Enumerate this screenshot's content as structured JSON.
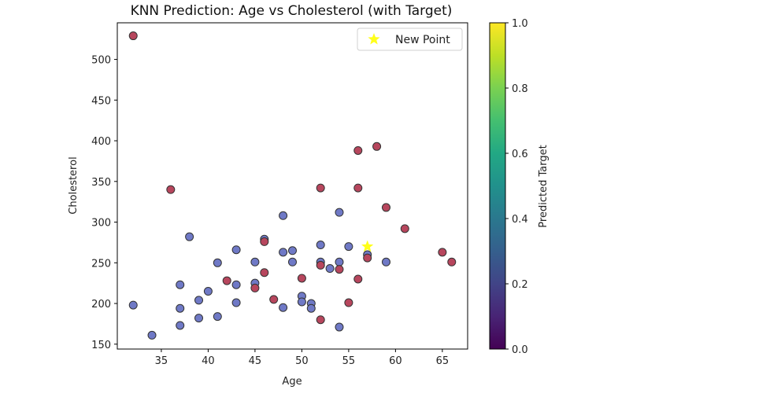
{
  "chart_data": {
    "type": "scatter",
    "title": "KNN Prediction: Age vs Cholesterol (with Target)",
    "xlabel": "Age",
    "ylabel": "Cholesterol",
    "xlim": [
      30.3,
      67.7
    ],
    "ylim": [
      144,
      545
    ],
    "x_ticks": [
      35,
      40,
      45,
      50,
      55,
      60,
      65
    ],
    "y_ticks": [
      150,
      200,
      250,
      300,
      350,
      400,
      450,
      500
    ],
    "colors": {
      "class_0": "#6f79c6",
      "class_1": "#b7465d",
      "edge": "#333333",
      "new_point": "#ffff1a"
    },
    "series": [
      {
        "class": 0,
        "points": [
          [
            32,
            198
          ],
          [
            34,
            161
          ],
          [
            37,
            223
          ],
          [
            37,
            194
          ],
          [
            37,
            173
          ],
          [
            38,
            282
          ],
          [
            39,
            204
          ],
          [
            39,
            182
          ],
          [
            40,
            215
          ],
          [
            41,
            250
          ],
          [
            41,
            184
          ],
          [
            43,
            266
          ],
          [
            43,
            223
          ],
          [
            43,
            201
          ],
          [
            45,
            251
          ],
          [
            45,
            225
          ],
          [
            46,
            279
          ],
          [
            48,
            308
          ],
          [
            48,
            263
          ],
          [
            48,
            195
          ],
          [
            49,
            265
          ],
          [
            49,
            251
          ],
          [
            50,
            209
          ],
          [
            50,
            202
          ],
          [
            51,
            200
          ],
          [
            51,
            194
          ],
          [
            52,
            272
          ],
          [
            52,
            251
          ],
          [
            53,
            243
          ],
          [
            54,
            312
          ],
          [
            54,
            251
          ],
          [
            54,
            171
          ],
          [
            55,
            270
          ],
          [
            57,
            260
          ],
          [
            59,
            251
          ]
        ]
      },
      {
        "class": 1,
        "points": [
          [
            32,
            529
          ],
          [
            36,
            340
          ],
          [
            42,
            228
          ],
          [
            45,
            219
          ],
          [
            46,
            276
          ],
          [
            46,
            238
          ],
          [
            47,
            205
          ],
          [
            50,
            231
          ],
          [
            52,
            342
          ],
          [
            52,
            247
          ],
          [
            52,
            180
          ],
          [
            54,
            242
          ],
          [
            55,
            201
          ],
          [
            56,
            388
          ],
          [
            56,
            342
          ],
          [
            56,
            230
          ],
          [
            57,
            256
          ],
          [
            58,
            393
          ],
          [
            59,
            318
          ],
          [
            61,
            292
          ],
          [
            65,
            263
          ],
          [
            66,
            251
          ]
        ]
      }
    ],
    "new_point": {
      "label": "New Point",
      "x": 57,
      "y": 270
    },
    "legend": {
      "location": "upper right",
      "entries": [
        "New Point"
      ]
    },
    "colorbar": {
      "label": "Predicted Target",
      "colormap": "viridis",
      "range": [
        0.0,
        1.0
      ],
      "tick_labels": [
        "0.0",
        "0.2",
        "0.4",
        "0.6",
        "0.8",
        "1.0"
      ]
    },
    "grid": false
  }
}
